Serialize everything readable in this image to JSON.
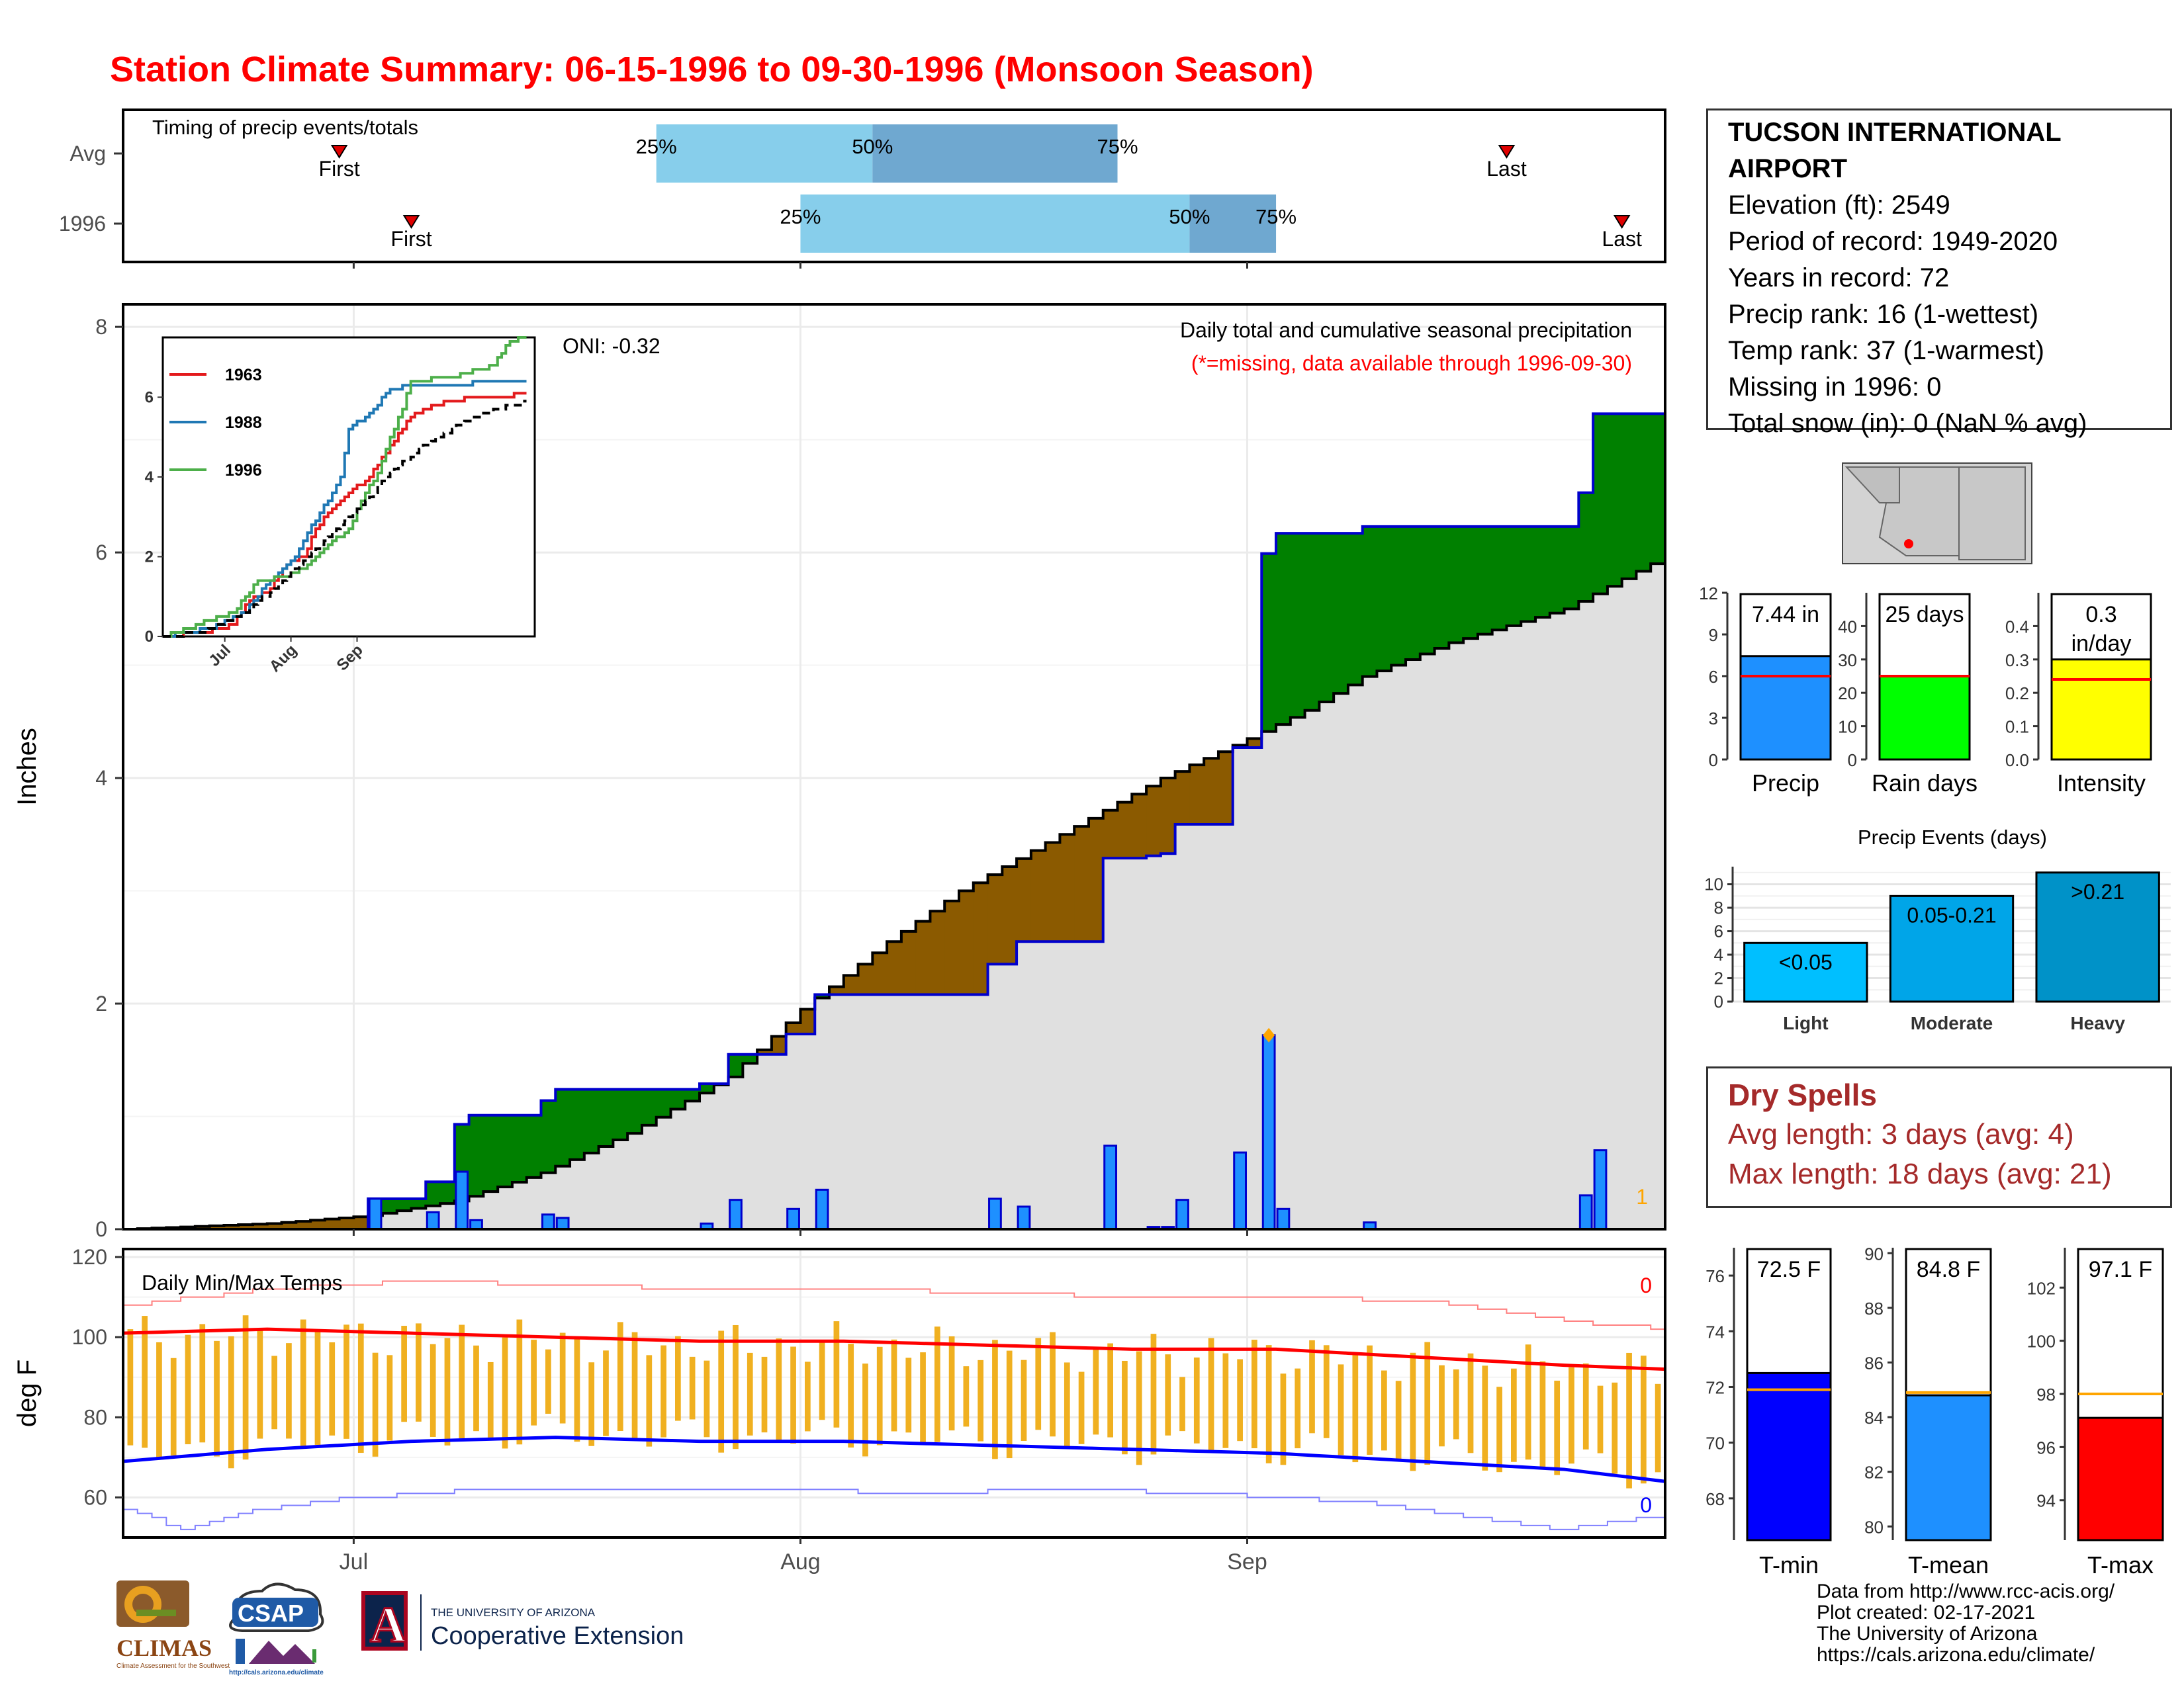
{
  "title": "Station Climate Summary: 06-15-1996 to 09-30-1996 (Monsoon Season)",
  "station": {
    "name": "TUCSON INTERNATIONAL AIRPORT",
    "elevation": "Elevation (ft): 2549",
    "period": "Period of record: 1949-2020",
    "years": "Years in record: 72",
    "precip_rank": "Precip rank: 16 (1-wettest)",
    "temp_rank": "Temp rank: 37 (1-warmest)",
    "missing": "Missing in 1996: 0",
    "snow": "Total snow (in): 0 (NaN % avg)"
  },
  "dry_spells": {
    "header": "Dry Spells",
    "avg": "Avg length: 3 days (avg: 4)",
    "max": "Max length: 18 days (avg: 21)"
  },
  "credits": [
    "Data from http://www.rcc-acis.org/",
    "Plot created: 02-17-2021",
    "The University of Arizona",
    "https://cals.arizona.edu/climate/"
  ],
  "logos": {
    "climas": "CLIMAS",
    "climas_sub": "Climate Assessment for the Southwest",
    "csap": "CSAP",
    "csap_sub": "http://cals.arizona.edu/climate",
    "ua_letter": "A",
    "ua_top": "THE UNIVERSITY OF ARIZONA",
    "ua_bottom": "Cooperative Extension"
  },
  "colors": {
    "title": "#ff0000",
    "above_avg": "#008000",
    "below_avg": "#8b5a00",
    "avg_fill": "#e0e0e0",
    "bars": "#1e90ff",
    "bar_edge": "#0000cd",
    "tmax": "#ff0000",
    "tmin": "#0000ff",
    "range": "#f0b020"
  },
  "chart_data": [
    {
      "type": "timeline",
      "title": "Timing of precip events/totals",
      "x_start": "1996-06-15",
      "x_end": "1996-09-30",
      "rows": [
        {
          "label": "Avg",
          "first": "1996-06-30",
          "last": "1996-09-19",
          "p25": "1996-07-22",
          "p50": "1996-08-06",
          "p75": "1996-08-23",
          "first_label": "First",
          "last_label": "Last",
          "p25_label": "25%",
          "p50_label": "50%",
          "p75_label": "75%"
        },
        {
          "label": "1996",
          "first": "1996-07-05",
          "last": "1996-09-27",
          "p25": "1996-08-01",
          "p50": "1996-08-28",
          "p75": "1996-09-03",
          "first_label": "First",
          "last_label": "Last",
          "p25_label": "25%",
          "p50_label": "50%",
          "p75_label": "75%"
        }
      ]
    },
    {
      "type": "area",
      "title": "Daily total and cumulative seasonal precipitation",
      "subtitle": "(*=missing, data available through 1996-09-30)",
      "oni": "ONI: -0.32",
      "ylabel": "Inches",
      "ylim": [
        0,
        8.2
      ],
      "yticks": [
        0,
        2,
        4,
        6,
        8
      ],
      "xticks": [
        {
          "label": "Jul",
          "day": 16
        },
        {
          "label": "Aug",
          "day": 47
        },
        {
          "label": "Sep",
          "day": 78
        }
      ],
      "missing_count": "1",
      "days": 107,
      "avg_cumulative_anchors": [
        [
          0,
          0
        ],
        [
          10,
          0.05
        ],
        [
          17,
          0.12
        ],
        [
          23,
          0.25
        ],
        [
          29,
          0.5
        ],
        [
          35,
          0.85
        ],
        [
          42,
          1.35
        ],
        [
          47,
          1.95
        ],
        [
          53,
          2.55
        ],
        [
          58,
          3.0
        ],
        [
          65,
          3.5
        ],
        [
          72,
          4.0
        ],
        [
          78,
          4.35
        ],
        [
          82,
          4.6
        ],
        [
          86,
          4.9
        ],
        [
          92,
          5.2
        ],
        [
          100,
          5.5
        ],
        [
          106,
          5.9
        ]
      ],
      "daily_precip": [
        {
          "day": 17,
          "value": 0.27
        },
        {
          "day": 21,
          "value": 0.15
        },
        {
          "day": 23,
          "value": 0.51
        },
        {
          "day": 24,
          "value": 0.08
        },
        {
          "day": 29,
          "value": 0.13
        },
        {
          "day": 30,
          "value": 0.1
        },
        {
          "day": 40,
          "value": 0.05
        },
        {
          "day": 42,
          "value": 0.26
        },
        {
          "day": 46,
          "value": 0.18
        },
        {
          "day": 48,
          "value": 0.35
        },
        {
          "day": 60,
          "value": 0.27
        },
        {
          "day": 62,
          "value": 0.2
        },
        {
          "day": 68,
          "value": 0.74
        },
        {
          "day": 71,
          "value": 0.02
        },
        {
          "day": 72,
          "value": 0.02
        },
        {
          "day": 73,
          "value": 0.26
        },
        {
          "day": 77,
          "value": 0.68
        },
        {
          "day": 79,
          "value": 1.72
        },
        {
          "day": 80,
          "value": 0.18
        },
        {
          "day": 86,
          "value": 0.06
        },
        {
          "day": 101,
          "value": 0.3
        },
        {
          "day": 102,
          "value": 0.7
        }
      ],
      "max_marker": {
        "day": 79,
        "value": 1.72
      },
      "inset": {
        "type": "line",
        "ylim": [
          0,
          7.5
        ],
        "yticks": [
          0,
          2,
          4,
          6
        ],
        "xticks": [
          "Jul",
          "Aug",
          "Sep"
        ],
        "series": [
          {
            "name": "1963",
            "color": "#e31a1c",
            "anchors": [
              [
                0,
                0
              ],
              [
                10,
                0.1
              ],
              [
                17,
                0.3
              ],
              [
                21,
                0.9
              ],
              [
                26,
                1.2
              ],
              [
                30,
                1.8
              ],
              [
                34,
                2.0
              ],
              [
                37,
                2.7
              ],
              [
                41,
                3.2
              ],
              [
                45,
                3.6
              ],
              [
                50,
                4.0
              ],
              [
                55,
                4.8
              ],
              [
                60,
                5.5
              ],
              [
                65,
                5.8
              ],
              [
                70,
                5.9
              ],
              [
                75,
                6.0
              ],
              [
                82,
                6.0
              ],
              [
                88,
                6.1
              ]
            ]
          },
          {
            "name": "1988",
            "color": "#1f78b4",
            "anchors": [
              [
                0,
                0
              ],
              [
                12,
                0.2
              ],
              [
                20,
                0.6
              ],
              [
                24,
                1.2
              ],
              [
                28,
                1.6
              ],
              [
                32,
                2.0
              ],
              [
                36,
                2.8
              ],
              [
                40,
                3.4
              ],
              [
                43,
                4.0
              ],
              [
                45,
                5.2
              ],
              [
                50,
                5.6
              ],
              [
                55,
                6.2
              ],
              [
                60,
                6.3
              ],
              [
                70,
                6.3
              ],
              [
                80,
                6.4
              ],
              [
                88,
                6.4
              ]
            ]
          },
          {
            "name": "1996",
            "color": "#4daf4a",
            "anchors": [
              [
                0,
                0
              ],
              [
                17,
                0.6
              ],
              [
                21,
                1.1
              ],
              [
                23,
                1.4
              ],
              [
                30,
                1.5
              ],
              [
                34,
                1.7
              ],
              [
                40,
                2.3
              ],
              [
                45,
                2.7
              ],
              [
                48,
                3.4
              ],
              [
                52,
                4.1
              ],
              [
                55,
                5.0
              ],
              [
                58,
                5.7
              ],
              [
                60,
                6.4
              ],
              [
                70,
                6.5
              ],
              [
                80,
                6.8
              ],
              [
                84,
                7.4
              ],
              [
                88,
                7.5
              ]
            ]
          },
          {
            "name": "",
            "color": "#000000",
            "dashed": true,
            "anchors": [
              [
                0,
                0
              ],
              [
                10,
                0.1
              ],
              [
                20,
                0.6
              ],
              [
                28,
                1.3
              ],
              [
                35,
                2.0
              ],
              [
                42,
                2.7
              ],
              [
                48,
                3.3
              ],
              [
                55,
                4.1
              ],
              [
                62,
                4.7
              ],
              [
                70,
                5.2
              ],
              [
                78,
                5.6
              ],
              [
                88,
                5.9
              ]
            ]
          }
        ]
      }
    },
    {
      "type": "line",
      "title": "Daily Min/Max Temps",
      "ylabel": "deg F",
      "ylim": [
        50,
        122
      ],
      "yticks": [
        60,
        80,
        100,
        120
      ],
      "xticks": [
        {
          "label": "Jul",
          "day": 16
        },
        {
          "label": "Aug",
          "day": 47
        },
        {
          "label": "Sep",
          "day": 78
        }
      ],
      "max_missing": "0",
      "min_missing": "0",
      "avg_max_anchors": [
        [
          0,
          101
        ],
        [
          10,
          102
        ],
        [
          20,
          101
        ],
        [
          30,
          100
        ],
        [
          40,
          99
        ],
        [
          50,
          99
        ],
        [
          60,
          98
        ],
        [
          70,
          97
        ],
        [
          80,
          97
        ],
        [
          90,
          95
        ],
        [
          100,
          93
        ],
        [
          107,
          92
        ]
      ],
      "avg_min_anchors": [
        [
          0,
          69
        ],
        [
          10,
          72
        ],
        [
          20,
          74
        ],
        [
          30,
          75
        ],
        [
          40,
          74
        ],
        [
          50,
          74
        ],
        [
          60,
          73
        ],
        [
          70,
          72
        ],
        [
          80,
          71
        ],
        [
          90,
          69
        ],
        [
          100,
          67
        ],
        [
          107,
          64
        ]
      ],
      "record_max_anchors": [
        [
          0,
          108
        ],
        [
          10,
          112
        ],
        [
          20,
          114
        ],
        [
          30,
          113
        ],
        [
          40,
          112
        ],
        [
          50,
          112
        ],
        [
          60,
          111
        ],
        [
          70,
          110
        ],
        [
          80,
          110
        ],
        [
          90,
          109
        ],
        [
          100,
          104
        ],
        [
          107,
          102
        ]
      ],
      "record_min_anchors": [
        [
          0,
          57
        ],
        [
          4,
          52
        ],
        [
          8,
          56
        ],
        [
          16,
          60
        ],
        [
          25,
          62
        ],
        [
          35,
          62
        ],
        [
          45,
          62
        ],
        [
          55,
          61
        ],
        [
          65,
          62
        ],
        [
          75,
          61
        ],
        [
          85,
          59
        ],
        [
          95,
          54
        ],
        [
          100,
          52
        ],
        [
          107,
          56
        ]
      ]
    },
    {
      "type": "bar",
      "categories": [
        "Precip"
      ],
      "values": [
        7.44
      ],
      "avg": 6.0,
      "label": "7.44 in",
      "ylim": [
        0,
        12
      ],
      "yticks": [
        0,
        3,
        6,
        9,
        12
      ],
      "color": "#1e90ff"
    },
    {
      "type": "bar",
      "categories": [
        "Rain days"
      ],
      "values": [
        25
      ],
      "avg": 25,
      "label": "25 days",
      "ylim": [
        0,
        50
      ],
      "yticks": [
        0,
        10,
        20,
        30,
        40
      ],
      "color": "#00ff00"
    },
    {
      "type": "bar",
      "categories": [
        "Intensity"
      ],
      "values": [
        0.3
      ],
      "avg": 0.24,
      "label": "0.3 in/day",
      "ylim": [
        0,
        0.5
      ],
      "yticks": [
        "0.0",
        "0.1",
        "0.2",
        "0.3",
        "0.4"
      ],
      "color": "#ffff00"
    },
    {
      "type": "bar",
      "title": "Precip Events (days)",
      "categories": [
        "Light",
        "Moderate",
        "Heavy"
      ],
      "values": [
        5,
        9,
        11
      ],
      "bar_labels": [
        "<0.05",
        "0.05-0.21",
        ">0.21"
      ],
      "ylim": [
        0,
        11.5
      ],
      "yticks": [
        0,
        2,
        4,
        6,
        8,
        10
      ],
      "colors": [
        "#00bfff",
        "#00a5e8",
        "#0092c8"
      ]
    },
    {
      "type": "bar",
      "categories": [
        "T-min"
      ],
      "values": [
        72.5
      ],
      "avg": 71.9,
      "label": "72.5 F",
      "ylim": [
        66.5,
        77
      ],
      "yticks": [
        68,
        70,
        72,
        74,
        76
      ],
      "color": "#0000ff"
    },
    {
      "type": "bar",
      "categories": [
        "T-mean"
      ],
      "values": [
        84.8
      ],
      "avg": 84.9,
      "label": "84.8 F",
      "ylim": [
        79.5,
        90.2
      ],
      "yticks": [
        80,
        82,
        84,
        86,
        88,
        90
      ],
      "color": "#1e90ff"
    },
    {
      "type": "bar",
      "categories": [
        "T-max"
      ],
      "values": [
        97.1
      ],
      "avg": 98.0,
      "label": "97.1 F",
      "ylim": [
        92.5,
        103.5
      ],
      "yticks": [
        94,
        96,
        98,
        100,
        102
      ],
      "color": "#ff0000"
    }
  ]
}
